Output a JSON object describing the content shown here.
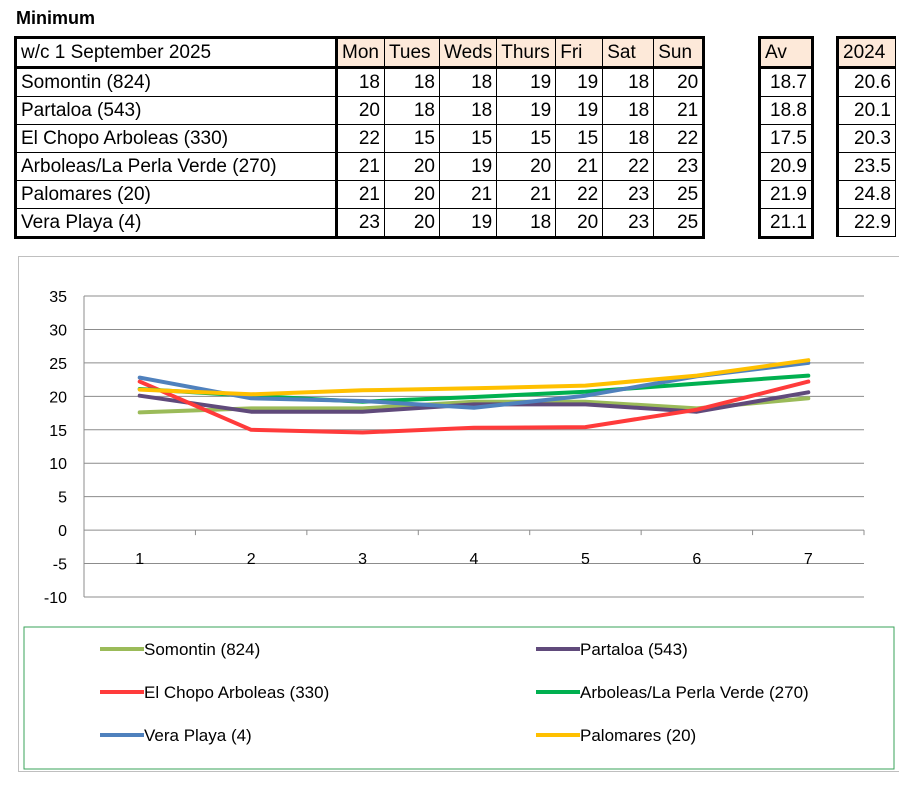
{
  "page_title": "Minimum",
  "table": {
    "week_label": "w/c 1 September  2025",
    "days": [
      "Mon",
      "Tues",
      "Weds",
      "Thurs",
      "Fri",
      "Sat",
      "Sun"
    ],
    "av_label": "Av",
    "year_label": "2024",
    "rows": [
      {
        "name": "Somontin (824)",
        "values": [
          18,
          18,
          18,
          19,
          19,
          18,
          20
        ],
        "av": "18.7",
        "prev": "20.6"
      },
      {
        "name": "Partaloa (543)",
        "values": [
          20,
          18,
          18,
          19,
          19,
          18,
          21
        ],
        "av": "18.8",
        "prev": "20.1"
      },
      {
        "name": "El Chopo Arboleas (330)",
        "values": [
          22,
          15,
          15,
          15,
          15,
          18,
          22
        ],
        "av": "17.5",
        "prev": "20.3"
      },
      {
        "name": "Arboleas/La Perla Verde (270)",
        "values": [
          21,
          20,
          19,
          20,
          21,
          22,
          23
        ],
        "av": "20.9",
        "prev": "23.5"
      },
      {
        "name": "Palomares (20)",
        "values": [
          21,
          20,
          21,
          21,
          22,
          23,
          25
        ],
        "av": "21.9",
        "prev": "24.8"
      },
      {
        "name": "Vera Playa (4)",
        "values": [
          23,
          20,
          19,
          18,
          20,
          23,
          25
        ],
        "av": "21.1",
        "prev": "22.9"
      }
    ]
  },
  "chart_data": {
    "type": "line",
    "x": [
      1,
      2,
      3,
      4,
      5,
      6,
      7
    ],
    "ylim": [
      -10,
      35
    ],
    "yticks": [
      -10,
      -5,
      0,
      5,
      10,
      15,
      20,
      25,
      30,
      35
    ],
    "grid": true,
    "legend_position": "bottom",
    "series": [
      {
        "name": "Somontin (824)",
        "color": "#9bbb59",
        "values": [
          17.6,
          18.2,
          18.2,
          19.2,
          19.2,
          18.2,
          19.7
        ]
      },
      {
        "name": "Partaloa (543)",
        "color": "#604a7b",
        "values": [
          20.1,
          17.7,
          17.7,
          18.8,
          18.8,
          17.7,
          20.6
        ]
      },
      {
        "name": "El Chopo Arboleas (330)",
        "color": "#ff3b3b",
        "values": [
          22.2,
          15.0,
          14.6,
          15.3,
          15.4,
          18.0,
          22.2
        ]
      },
      {
        "name": "Arboleas/La Perla Verde (270)",
        "color": "#00b050",
        "values": [
          21.1,
          20.1,
          19.2,
          19.9,
          20.7,
          21.9,
          23.1
        ]
      },
      {
        "name": "Vera Playa (4)",
        "color": "#4f81bd",
        "values": [
          22.8,
          19.7,
          19.3,
          18.3,
          20.1,
          23.0,
          25.0
        ]
      },
      {
        "name": "Palomares (20)",
        "color": "#ffc000",
        "values": [
          21.0,
          20.3,
          20.9,
          21.2,
          21.6,
          23.1,
          25.4
        ]
      }
    ]
  }
}
